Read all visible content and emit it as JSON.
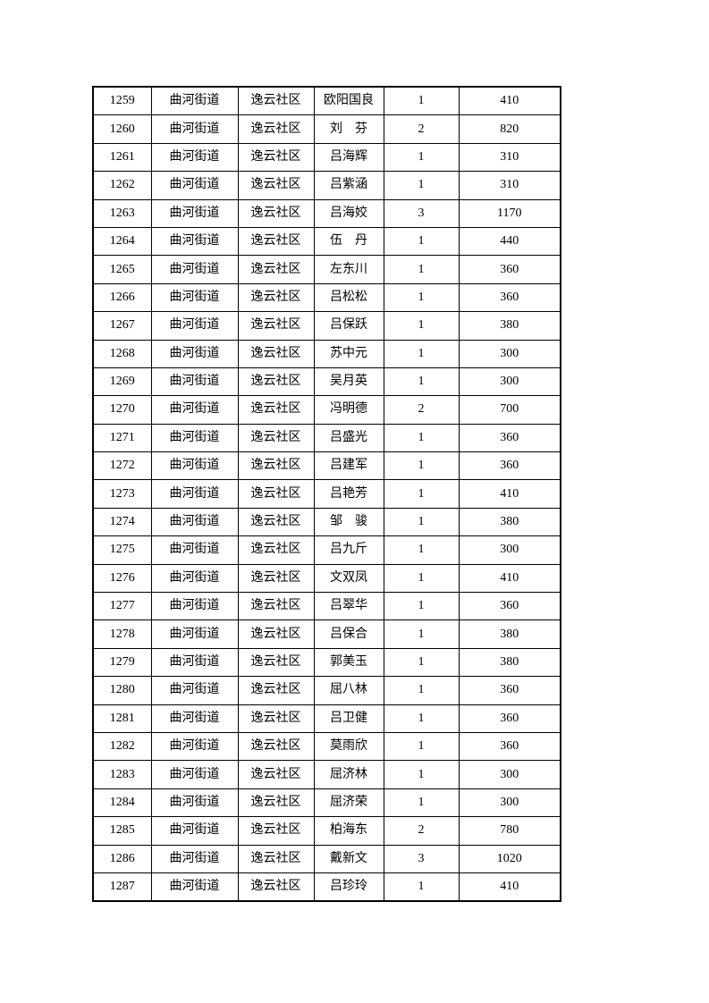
{
  "page": {
    "background_color": "#ffffff",
    "text_color": "#000000",
    "border_color": "#000000"
  },
  "table": {
    "rows": [
      {
        "id": "1259",
        "street": "曲河街道",
        "community": "逸云社区",
        "name": "欧阳国良",
        "count": "1",
        "amount": "410"
      },
      {
        "id": "1260",
        "street": "曲河街道",
        "community": "逸云社区",
        "name": "刘　芬",
        "count": "2",
        "amount": "820"
      },
      {
        "id": "1261",
        "street": "曲河街道",
        "community": "逸云社区",
        "name": "吕海辉",
        "count": "1",
        "amount": "310"
      },
      {
        "id": "1262",
        "street": "曲河街道",
        "community": "逸云社区",
        "name": "吕紫涵",
        "count": "1",
        "amount": "310"
      },
      {
        "id": "1263",
        "street": "曲河街道",
        "community": "逸云社区",
        "name": "吕海姣",
        "count": "3",
        "amount": "1170"
      },
      {
        "id": "1264",
        "street": "曲河街道",
        "community": "逸云社区",
        "name": "伍　丹",
        "count": "1",
        "amount": "440"
      },
      {
        "id": "1265",
        "street": "曲河街道",
        "community": "逸云社区",
        "name": "左东川",
        "count": "1",
        "amount": "360"
      },
      {
        "id": "1266",
        "street": "曲河街道",
        "community": "逸云社区",
        "name": "吕松松",
        "count": "1",
        "amount": "360"
      },
      {
        "id": "1267",
        "street": "曲河街道",
        "community": "逸云社区",
        "name": "吕保跃",
        "count": "1",
        "amount": "380"
      },
      {
        "id": "1268",
        "street": "曲河街道",
        "community": "逸云社区",
        "name": "苏中元",
        "count": "1",
        "amount": "300"
      },
      {
        "id": "1269",
        "street": "曲河街道",
        "community": "逸云社区",
        "name": "吴月英",
        "count": "1",
        "amount": "300"
      },
      {
        "id": "1270",
        "street": "曲河街道",
        "community": "逸云社区",
        "name": "冯明德",
        "count": "2",
        "amount": "700"
      },
      {
        "id": "1271",
        "street": "曲河街道",
        "community": "逸云社区",
        "name": "吕盛光",
        "count": "1",
        "amount": "360"
      },
      {
        "id": "1272",
        "street": "曲河街道",
        "community": "逸云社区",
        "name": "吕建军",
        "count": "1",
        "amount": "360"
      },
      {
        "id": "1273",
        "street": "曲河街道",
        "community": "逸云社区",
        "name": "吕艳芳",
        "count": "1",
        "amount": "410"
      },
      {
        "id": "1274",
        "street": "曲河街道",
        "community": "逸云社区",
        "name": "邹　骏",
        "count": "1",
        "amount": "380"
      },
      {
        "id": "1275",
        "street": "曲河街道",
        "community": "逸云社区",
        "name": "吕九斤",
        "count": "1",
        "amount": "300"
      },
      {
        "id": "1276",
        "street": "曲河街道",
        "community": "逸云社区",
        "name": "文双凤",
        "count": "1",
        "amount": "410"
      },
      {
        "id": "1277",
        "street": "曲河街道",
        "community": "逸云社区",
        "name": "吕翠华",
        "count": "1",
        "amount": "360"
      },
      {
        "id": "1278",
        "street": "曲河街道",
        "community": "逸云社区",
        "name": "吕保合",
        "count": "1",
        "amount": "380"
      },
      {
        "id": "1279",
        "street": "曲河街道",
        "community": "逸云社区",
        "name": "郭美玉",
        "count": "1",
        "amount": "380"
      },
      {
        "id": "1280",
        "street": "曲河街道",
        "community": "逸云社区",
        "name": "屈八林",
        "count": "1",
        "amount": "360"
      },
      {
        "id": "1281",
        "street": "曲河街道",
        "community": "逸云社区",
        "name": "吕卫健",
        "count": "1",
        "amount": "360"
      },
      {
        "id": "1282",
        "street": "曲河街道",
        "community": "逸云社区",
        "name": "莫雨欣",
        "count": "1",
        "amount": "360"
      },
      {
        "id": "1283",
        "street": "曲河街道",
        "community": "逸云社区",
        "name": "屈济林",
        "count": "1",
        "amount": "300"
      },
      {
        "id": "1284",
        "street": "曲河街道",
        "community": "逸云社区",
        "name": "屈济荣",
        "count": "1",
        "amount": "300"
      },
      {
        "id": "1285",
        "street": "曲河街道",
        "community": "逸云社区",
        "name": "柏海东",
        "count": "2",
        "amount": "780"
      },
      {
        "id": "1286",
        "street": "曲河街道",
        "community": "逸云社区",
        "name": "戴新文",
        "count": "3",
        "amount": "1020"
      },
      {
        "id": "1287",
        "street": "曲河街道",
        "community": "逸云社区",
        "name": "吕珍玲",
        "count": "1",
        "amount": "410"
      }
    ]
  }
}
